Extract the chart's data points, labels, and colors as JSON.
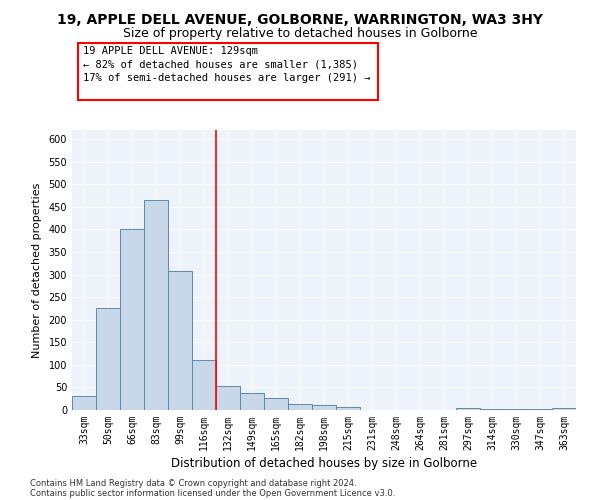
{
  "title": "19, APPLE DELL AVENUE, GOLBORNE, WARRINGTON, WA3 3HY",
  "subtitle": "Size of property relative to detached houses in Golborne",
  "xlabel": "Distribution of detached houses by size in Golborne",
  "ylabel": "Number of detached properties",
  "footer_line1": "Contains HM Land Registry data © Crown copyright and database right 2024.",
  "footer_line2": "Contains public sector information licensed under the Open Government Licence v3.0.",
  "categories": [
    "33sqm",
    "50sqm",
    "66sqm",
    "83sqm",
    "99sqm",
    "116sqm",
    "132sqm",
    "149sqm",
    "165sqm",
    "182sqm",
    "198sqm",
    "215sqm",
    "231sqm",
    "248sqm",
    "264sqm",
    "281sqm",
    "297sqm",
    "314sqm",
    "330sqm",
    "347sqm",
    "363sqm"
  ],
  "values": [
    30,
    225,
    400,
    465,
    308,
    110,
    53,
    38,
    27,
    13,
    12,
    6,
    0,
    0,
    0,
    0,
    5,
    2,
    2,
    2,
    5
  ],
  "bar_color": "#c8d8e8",
  "bar_edge_color": "#5a8ab0",
  "reference_line_x": 5.5,
  "reference_line_color": "red",
  "annotation_text_line1": "19 APPLE DELL AVENUE: 129sqm",
  "annotation_text_line2": "← 82% of detached houses are smaller (1,385)",
  "annotation_text_line3": "17% of semi-detached houses are larger (291) →",
  "ylim": [
    0,
    620
  ],
  "yticks": [
    0,
    50,
    100,
    150,
    200,
    250,
    300,
    350,
    400,
    450,
    500,
    550,
    600
  ],
  "background_color": "#eef2fa",
  "grid_color": "#ffffff",
  "title_fontsize": 10,
  "subtitle_fontsize": 9,
  "xlabel_fontsize": 8.5,
  "ylabel_fontsize": 8,
  "tick_fontsize": 7,
  "annotation_fontsize": 7.5
}
